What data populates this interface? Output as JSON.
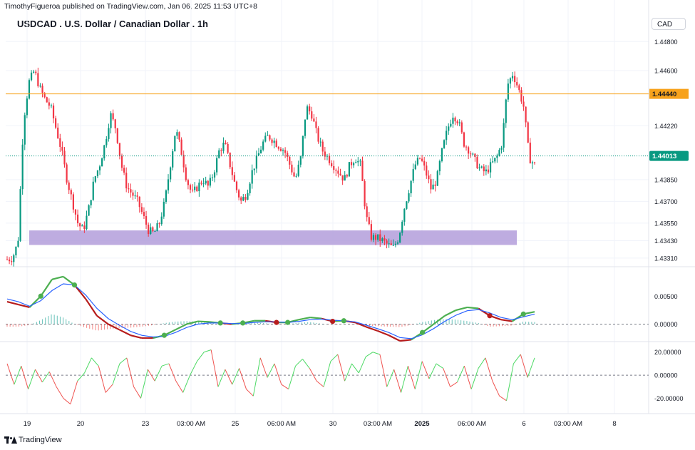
{
  "header": {
    "publisher_line": "TimothyFigueroa published on TradingView.com, Jan 06, 2025 11:53 UTC+8"
  },
  "symbol": {
    "title": "USDCAD . U.S. Dollar / Canadian Dollar . 1h"
  },
  "currency": {
    "label": "CAD"
  },
  "branding": {
    "logo_text": "TradingView"
  },
  "colors": {
    "up": "#26a69a",
    "down": "#ef5350",
    "candle_up": "#089981",
    "candle_down": "#f23645",
    "resistance_line": "#f7a21b",
    "current_price_badge": "#089981",
    "support_zone": "#b39ddb",
    "osc_fast": "#4caf50",
    "osc_slow": "#2962ff",
    "osc_red": "#b71c1c"
  },
  "chart_data": [
    {
      "type": "candlestick",
      "series_name": "USDCAD 1h",
      "y_tick_labels": [
        "1.44800",
        "1.44600",
        "1.44220",
        "1.43850",
        "1.43700",
        "1.43550",
        "1.43430",
        "1.43310"
      ],
      "ylim": [
        1.4326,
        1.4488
      ],
      "x_tick_labels": [
        "19",
        "20",
        "23",
        "03:00 AM",
        "25",
        "06:00 AM",
        "30",
        "03:00 AM",
        "2025",
        "06:00 AM",
        "6",
        "03:00 AM",
        "8"
      ],
      "resistance_level": {
        "value": 1.4444,
        "label": "1.44440"
      },
      "current_price": {
        "value": 1.44013,
        "label": "1.44013"
      },
      "support_zone": {
        "low": 1.434,
        "high": 1.435
      },
      "close_path": [
        1.433,
        1.4331,
        1.4342,
        1.4425,
        1.4452,
        1.446,
        1.4448,
        1.444,
        1.4435,
        1.442,
        1.4405,
        1.4385,
        1.437,
        1.4355,
        1.435,
        1.4365,
        1.4385,
        1.4395,
        1.441,
        1.443,
        1.442,
        1.4395,
        1.438,
        1.4375,
        1.437,
        1.436,
        1.435,
        1.4348,
        1.4355,
        1.437,
        1.4395,
        1.442,
        1.4405,
        1.4385,
        1.4375,
        1.438,
        1.4385,
        1.438,
        1.439,
        1.4405,
        1.441,
        1.4395,
        1.438,
        1.437,
        1.4375,
        1.439,
        1.44,
        1.441,
        1.4415,
        1.4412,
        1.4408,
        1.4405,
        1.4395,
        1.4385,
        1.44,
        1.4435,
        1.443,
        1.4415,
        1.4405,
        1.44,
        1.4395,
        1.439,
        1.4385,
        1.4395,
        1.44,
        1.4395,
        1.436,
        1.4345,
        1.4345,
        1.4343,
        1.434,
        1.4338,
        1.4345,
        1.4365,
        1.438,
        1.4395,
        1.44,
        1.439,
        1.4378,
        1.4385,
        1.4405,
        1.442,
        1.443,
        1.4425,
        1.441,
        1.4405,
        1.4398,
        1.4392,
        1.439,
        1.4395,
        1.44,
        1.441,
        1.445,
        1.4458,
        1.4448,
        1.4435,
        1.44,
        1.4395
      ]
    },
    {
      "type": "line",
      "series_name": "momentum oscillator",
      "y_tick_labels": [
        "0.00500",
        "0.00000"
      ],
      "ylim": [
        -0.003,
        0.0095
      ],
      "fast": [
        0.004,
        0.0035,
        0.003,
        0.005,
        0.008,
        0.0085,
        0.007,
        0.0045,
        0.0015,
        0.0,
        -0.001,
        -0.002,
        -0.0025,
        -0.0025,
        -0.002,
        -0.001,
        0.0,
        0.0005,
        0.0004,
        0.0002,
        0.0,
        0.0002,
        0.0006,
        0.0006,
        0.0003,
        0.0003,
        0.0008,
        0.0012,
        0.001,
        0.0005,
        0.0006,
        0.0003,
        -0.0005,
        -0.0012,
        -0.002,
        -0.003,
        -0.0028,
        -0.0015,
        0.0,
        0.0015,
        0.0025,
        0.003,
        0.0028,
        0.0015,
        0.0008,
        0.0005,
        0.0018,
        0.0022
      ],
      "slow": [
        0.0045,
        0.004,
        0.0032,
        0.0042,
        0.006,
        0.0072,
        0.007,
        0.0052,
        0.0028,
        0.001,
        -0.0002,
        -0.0013,
        -0.002,
        -0.0023,
        -0.0022,
        -0.0015,
        -0.0006,
        0.0,
        0.0002,
        0.0002,
        0.0001,
        0.0001,
        0.0003,
        0.0004,
        0.0004,
        0.0003,
        0.0005,
        0.0008,
        0.0009,
        0.0007,
        0.0006,
        0.0004,
        -0.0002,
        -0.0008,
        -0.0015,
        -0.0024,
        -0.0026,
        -0.0019,
        -0.0008,
        0.0005,
        0.0016,
        0.0024,
        0.0026,
        0.002,
        0.0012,
        0.0008,
        0.0013,
        0.0018
      ]
    },
    {
      "type": "line",
      "series_name": "oscillator",
      "y_tick_labels": [
        "20.00000",
        "0.00000",
        "-20.00000"
      ],
      "ylim": [
        -32,
        26
      ],
      "values": [
        10,
        -8,
        8,
        -12,
        5,
        -6,
        3,
        -10,
        -20,
        -25,
        -5,
        2,
        15,
        8,
        -15,
        -8,
        10,
        15,
        -10,
        -20,
        5,
        -5,
        8,
        10,
        -5,
        -15,
        0,
        12,
        20,
        22,
        -10,
        5,
        -8,
        6,
        -12,
        -18,
        15,
        -2,
        10,
        -8,
        -12,
        8,
        14,
        6,
        -5,
        -10,
        12,
        18,
        -5,
        10,
        2,
        16,
        20,
        18,
        -10,
        5,
        -15,
        8,
        -12,
        12,
        -3,
        10,
        6,
        -10,
        -6,
        8,
        -12,
        6,
        15,
        -5,
        -18,
        -22,
        10,
        18,
        -2,
        15
      ],
      "reference_levels": [
        20,
        0,
        -20
      ]
    }
  ]
}
